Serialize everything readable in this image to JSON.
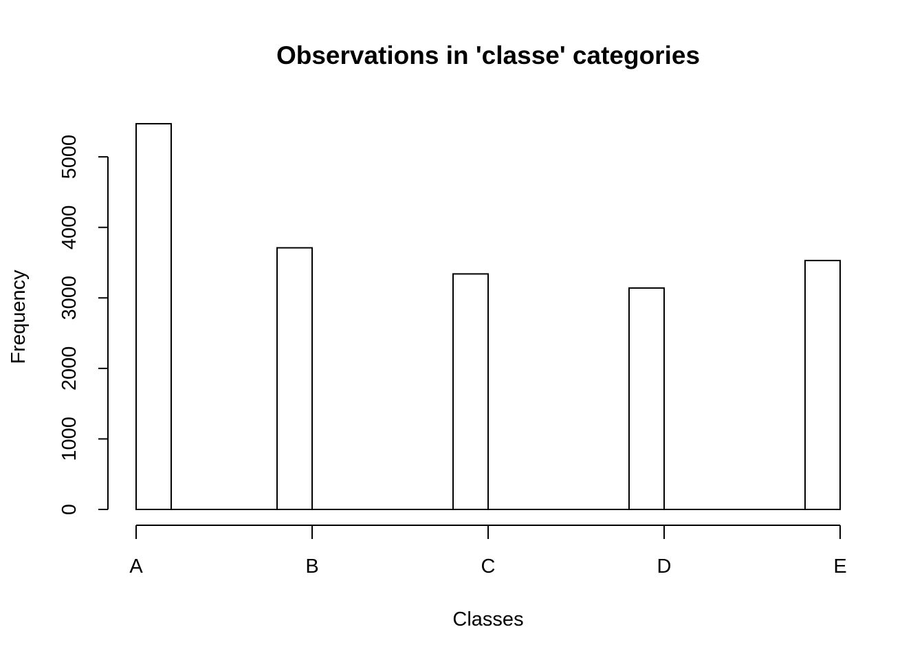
{
  "chart_data": {
    "type": "bar",
    "title": "Observations in 'classe' categories",
    "xlabel": "Classes",
    "ylabel": "Frequency",
    "categories": [
      "A",
      "B",
      "C",
      "D",
      "E"
    ],
    "values": [
      5470,
      3710,
      3340,
      3140,
      3530
    ],
    "yticks": [
      0,
      1000,
      2000,
      3000,
      4000,
      5000
    ],
    "ylim": [
      0,
      5470
    ],
    "grid": false,
    "legend": "none",
    "colors": {
      "bar_fill": "#ffffff",
      "bar_stroke": "#000000"
    }
  }
}
